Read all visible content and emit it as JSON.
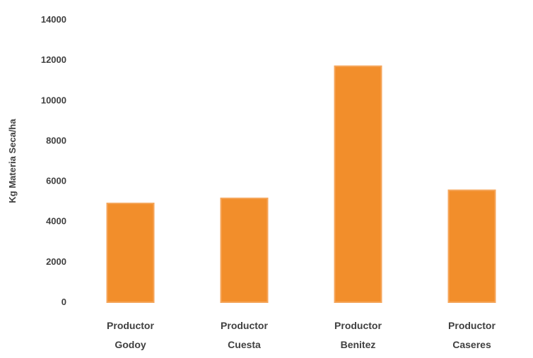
{
  "chart_data": {
    "type": "bar",
    "categories": [
      [
        "Productor",
        "Godoy"
      ],
      [
        "Productor",
        "Cuesta"
      ],
      [
        "Productor",
        "Benitez"
      ],
      [
        "Productor",
        "Caseres"
      ]
    ],
    "values": [
      4900,
      5150,
      11700,
      5550
    ],
    "xlabel": "",
    "ylabel": "Kg Materia Seca/ha",
    "ylim": [
      0,
      14000
    ],
    "yticks": [
      0,
      2000,
      4000,
      6000,
      8000,
      10000,
      12000,
      14000
    ],
    "grid": false,
    "legend": "none",
    "colors": {
      "bar": "#f28e2b",
      "bar_edge": "#f5a65b",
      "text": "#404040"
    }
  }
}
